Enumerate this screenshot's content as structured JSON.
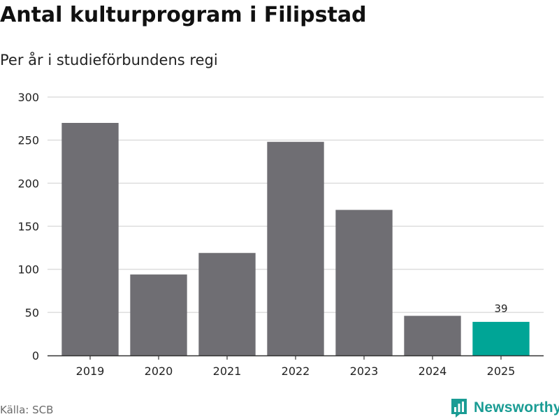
{
  "title": "Antal kulturprogram i Filipstad",
  "subtitle": "Per år i studieförbundens regi",
  "source": "Källa: SCB",
  "brand": "Newsworthy",
  "colors": {
    "bar": "#6f6e73",
    "highlight": "#00a596",
    "grid": "#dddddd",
    "axis": "#333333"
  },
  "chart_data": {
    "type": "bar",
    "categories": [
      "2019",
      "2020",
      "2021",
      "2022",
      "2023",
      "2024",
      "2025"
    ],
    "values": [
      270,
      94,
      119,
      248,
      169,
      46,
      39
    ],
    "highlight_index": 6,
    "data_labels": [
      {
        "index": 6,
        "text": "39"
      }
    ],
    "title": "Antal kulturprogram i Filipstad",
    "subtitle": "Per år i studieförbundens regi",
    "xlabel": "",
    "ylabel": "",
    "ylim": [
      0,
      300
    ],
    "yticks": [
      0,
      50,
      100,
      150,
      200,
      250,
      300
    ],
    "grid": true,
    "legend": "none"
  }
}
